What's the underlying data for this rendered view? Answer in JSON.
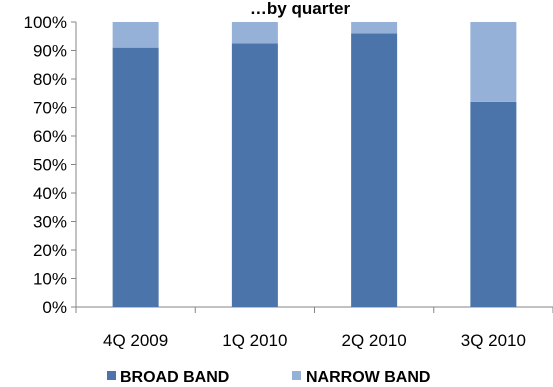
{
  "chart_data": {
    "type": "bar",
    "stacked": true,
    "title": "…by quarter",
    "categories": [
      "4Q 2009",
      "1Q 2010",
      "2Q 2010",
      "3Q 2010"
    ],
    "series": [
      {
        "name": "BROAD BAND",
        "values": [
          91,
          92.5,
          96,
          72
        ],
        "color": "#4a74aa"
      },
      {
        "name": "NARROW BAND",
        "values": [
          9,
          7.5,
          4,
          28
        ],
        "color": "#95b1d7"
      }
    ],
    "ylim": [
      0,
      100
    ],
    "yticks": [
      "0%",
      "10%",
      "20%",
      "30%",
      "40%",
      "50%",
      "60%",
      "70%",
      "80%",
      "90%",
      "100%"
    ],
    "grid": false,
    "legend_position": "bottom"
  }
}
